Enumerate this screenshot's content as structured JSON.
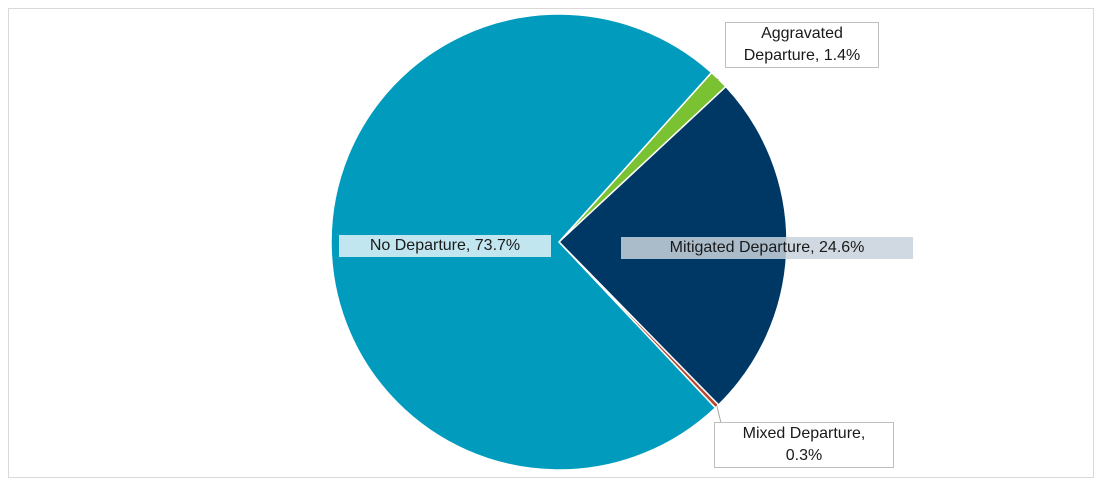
{
  "chart_data": {
    "type": "pie",
    "title": "",
    "legend": "none",
    "slices": [
      {
        "name": "Aggravated Departure",
        "value": 1.4,
        "color": "#7ac231",
        "label_line1": "Aggravated",
        "label_line2": "Departure, 1.4%"
      },
      {
        "name": "Mitigated Departure",
        "value": 24.6,
        "color": "#003865",
        "label_line1": "Mitigated Departure, 24.6%"
      },
      {
        "name": "Mixed Departure",
        "value": 0.3,
        "color": "#b5482f",
        "label_line1": "Mixed Departure,",
        "label_line2": "0.3%"
      },
      {
        "name": "No Departure",
        "value": 73.7,
        "color": "#009bbd",
        "label_line1": "No Departure, 73.7%"
      }
    ]
  }
}
